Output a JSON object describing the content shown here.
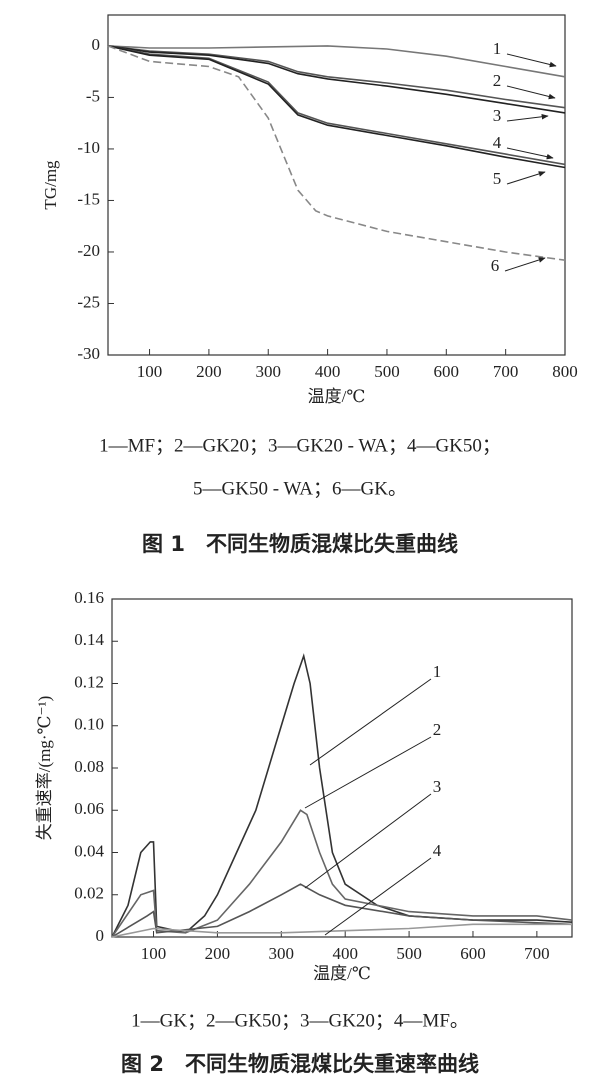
{
  "chart_data": [
    {
      "type": "line",
      "title": "图 1　不同生物质混煤比失重曲线",
      "xlabel": "温度/℃",
      "ylabel": "TG/mg",
      "legend": [
        "1—MF；2—GK20；3—GK20 - WA；4—GK50；",
        "5—GK50 - WA；6—GK。"
      ],
      "xlim": [
        30,
        800
      ],
      "ylim": [
        -30,
        3
      ],
      "xticks": [
        100,
        200,
        300,
        400,
        500,
        600,
        700,
        800
      ],
      "yticks": [
        0,
        -5,
        -10,
        -15,
        -20,
        -25,
        -30
      ],
      "series": [
        {
          "name": "1",
          "color": "#777",
          "dash": false,
          "x": [
            30,
            100,
            200,
            300,
            400,
            500,
            600,
            700,
            800
          ],
          "values": [
            0,
            -0.2,
            -0.2,
            -0.1,
            0,
            -0.3,
            -1,
            -2,
            -3
          ]
        },
        {
          "name": "2",
          "color": "#555",
          "dash": false,
          "x": [
            30,
            100,
            200,
            300,
            350,
            400,
            500,
            600,
            700,
            800
          ],
          "values": [
            0,
            -0.5,
            -0.8,
            -1.5,
            -2.5,
            -3,
            -3.6,
            -4.3,
            -5.2,
            -6
          ]
        },
        {
          "name": "3",
          "color": "#222",
          "dash": false,
          "x": [
            30,
            100,
            200,
            300,
            350,
            400,
            500,
            600,
            700,
            800
          ],
          "values": [
            0,
            -0.6,
            -0.9,
            -1.7,
            -2.7,
            -3.2,
            -3.9,
            -4.7,
            -5.6,
            -6.5
          ]
        },
        {
          "name": "4",
          "color": "#555",
          "dash": false,
          "x": [
            30,
            100,
            200,
            300,
            350,
            400,
            500,
            600,
            700,
            800
          ],
          "values": [
            0,
            -0.8,
            -1.2,
            -3.5,
            -6.5,
            -7.5,
            -8.5,
            -9.5,
            -10.5,
            -11.5
          ]
        },
        {
          "name": "5",
          "color": "#222",
          "dash": false,
          "x": [
            30,
            100,
            200,
            300,
            350,
            400,
            500,
            600,
            700,
            800
          ],
          "values": [
            0,
            -0.9,
            -1.3,
            -3.7,
            -6.7,
            -7.7,
            -8.7,
            -9.7,
            -10.8,
            -11.8
          ]
        },
        {
          "name": "6",
          "color": "#888",
          "dash": true,
          "x": [
            30,
            100,
            200,
            250,
            300,
            350,
            380,
            400,
            500,
            600,
            700,
            800
          ],
          "values": [
            0,
            -1.5,
            -2,
            -3,
            -7,
            -14,
            -16,
            -16.5,
            -18,
            -19,
            -20,
            -20.8
          ]
        }
      ]
    },
    {
      "type": "line",
      "title": "图 2　不同生物质混煤比失重速率曲线",
      "xlabel": "温度/℃",
      "ylabel": "失重速率/(mg·℃⁻¹)",
      "legend": [
        "1—GK；2—GK50；3—GK20；4—MF。"
      ],
      "xlim": [
        35,
        755
      ],
      "ylim": [
        0,
        0.16
      ],
      "xticks": [
        100,
        200,
        300,
        400,
        500,
        600,
        700
      ],
      "yticks": [
        0,
        0.02,
        0.04,
        0.06,
        0.08,
        {
          "value": 0.1,
          "label": "0.10"
        },
        0.12,
        0.14,
        0.16
      ],
      "series": [
        {
          "name": "1",
          "color": "#333",
          "dash": false,
          "x": [
            35,
            60,
            80,
            95,
            100,
            105,
            150,
            180,
            200,
            230,
            260,
            290,
            320,
            335,
            345,
            360,
            380,
            400,
            450,
            500,
            600,
            700,
            755
          ],
          "values": [
            0,
            0.015,
            0.04,
            0.045,
            0.045,
            0.005,
            0.002,
            0.01,
            0.02,
            0.04,
            0.06,
            0.09,
            0.12,
            0.133,
            0.12,
            0.08,
            0.04,
            0.025,
            0.015,
            0.01,
            0.008,
            0.008,
            0.007
          ]
        },
        {
          "name": "2",
          "color": "#666",
          "dash": false,
          "x": [
            35,
            80,
            100,
            105,
            150,
            200,
            250,
            300,
            330,
            340,
            360,
            380,
            400,
            500,
            600,
            700,
            755
          ],
          "values": [
            0,
            0.02,
            0.022,
            0.003,
            0.002,
            0.008,
            0.025,
            0.045,
            0.06,
            0.058,
            0.04,
            0.025,
            0.018,
            0.012,
            0.01,
            0.01,
            0.008
          ]
        },
        {
          "name": "3",
          "color": "#555",
          "dash": false,
          "x": [
            35,
            90,
            100,
            105,
            200,
            250,
            300,
            330,
            360,
            400,
            500,
            600,
            755
          ],
          "values": [
            0,
            0.01,
            0.012,
            0.002,
            0.005,
            0.012,
            0.02,
            0.025,
            0.02,
            0.015,
            0.01,
            0.008,
            0.006
          ]
        },
        {
          "name": "4",
          "color": "#999",
          "dash": false,
          "x": [
            35,
            100,
            200,
            300,
            400,
            500,
            600,
            755
          ],
          "values": [
            0,
            0.004,
            0.002,
            0.002,
            0.003,
            0.004,
            0.006,
            0.006
          ]
        }
      ]
    }
  ]
}
